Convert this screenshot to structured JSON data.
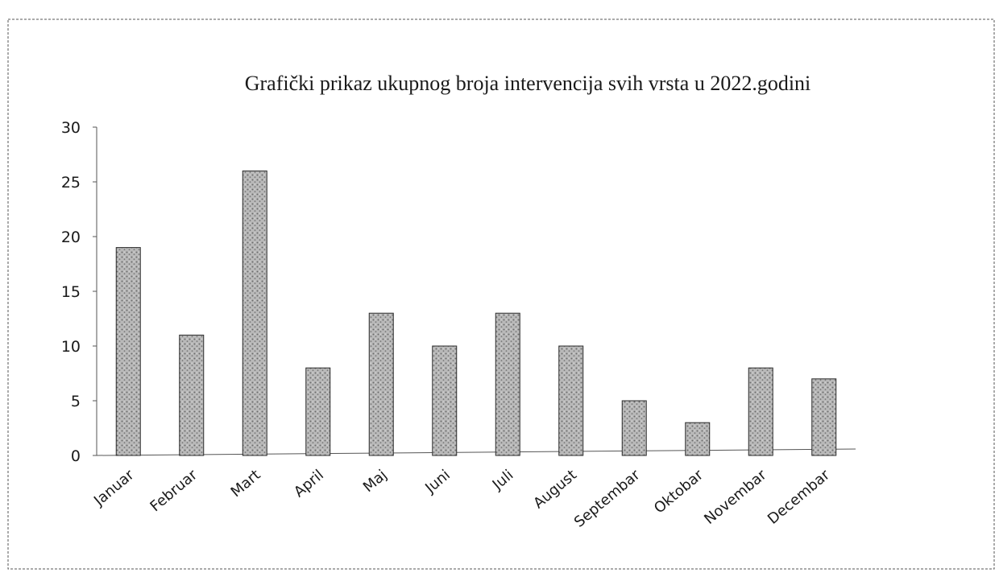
{
  "chart_data": {
    "type": "bar",
    "title": "Grafički prikaz ukupnog broja intervencija svih vrsta u 2022.godini",
    "xlabel": "",
    "ylabel": "",
    "categories": [
      "Januar",
      "Februar",
      "Mart",
      "April",
      "Maj",
      "Juni",
      "Juli",
      "August",
      "Septembar",
      "Oktobar",
      "Novembar",
      "Decembar"
    ],
    "series": [
      {
        "values": [
          19,
          11,
          26,
          8,
          13,
          10,
          13,
          10,
          5,
          3,
          8,
          7
        ]
      }
    ],
    "ylim": [
      0,
      30
    ],
    "yticks": [
      0,
      5,
      10,
      15,
      20,
      25,
      30
    ],
    "grid": false,
    "legend": "none",
    "colors": {
      "bar": "#a8a8a8",
      "bar_outline": "#2b2b2b",
      "axis": "#555555",
      "border": "#444444"
    }
  }
}
